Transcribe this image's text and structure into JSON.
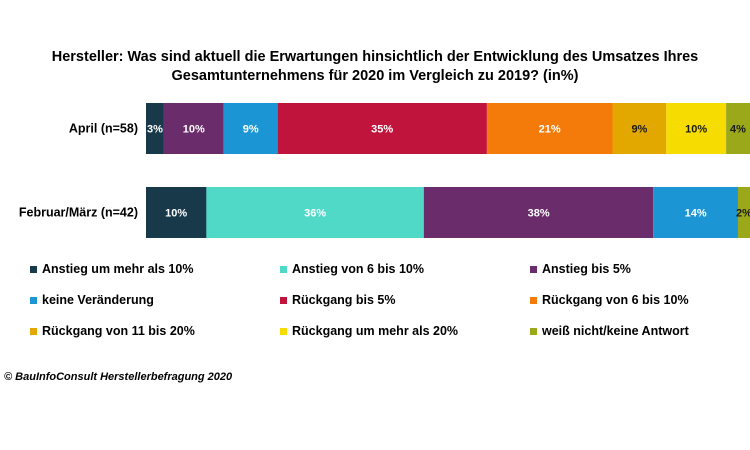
{
  "chart_data": {
    "type": "bar",
    "orientation": "horizontal-stacked-100",
    "title_lines": [
      "Hersteller: Was sind aktuell die Erwartungen hinsichtlich der Entwicklung des Umsatzes Ihres",
      "Gesamtunternehmens für 2020 im Vergleich zu 2019? (in%)"
    ],
    "categories": [
      "April (n=58)",
      "Februar/März (n=42)"
    ],
    "series": [
      {
        "name": "Anstieg um mehr als 10%",
        "color": "#17394a",
        "values": [
          3,
          10
        ],
        "labels": [
          "3%",
          "10%"
        ]
      },
      {
        "name": "Anstieg von 6 bis 10%",
        "color": "#4fd9c6",
        "values": [
          0,
          36
        ],
        "labels": [
          "",
          "36%"
        ]
      },
      {
        "name": "Anstieg bis 5%",
        "color": "#6a2c6a",
        "values": [
          10,
          38
        ],
        "labels": [
          "10%",
          "38%"
        ]
      },
      {
        "name": "keine Veränderung",
        "color": "#1b95d3",
        "values": [
          9,
          14
        ],
        "labels": [
          "9%",
          "14%"
        ]
      },
      {
        "name": "Rückgang bis 5%",
        "color": "#c0143c",
        "values": [
          35,
          0
        ],
        "labels": [
          "35%",
          ""
        ]
      },
      {
        "name": "Rückgang von 6 bis 10%",
        "color": "#f47b0a",
        "values": [
          21,
          0
        ],
        "labels": [
          "21%",
          ""
        ]
      },
      {
        "name": "Rückgang von 11 bis 20%",
        "color": "#e3a800",
        "values": [
          9,
          0
        ],
        "labels": [
          "9%",
          ""
        ]
      },
      {
        "name": "Rückgang um mehr als 20%",
        "color": "#f7dc00",
        "values": [
          10,
          0
        ],
        "labels": [
          "10%",
          ""
        ]
      },
      {
        "name": "weiß nicht/keine Antwort",
        "color": "#9aa81a",
        "values": [
          4,
          2
        ],
        "labels": [
          "4%",
          "2%"
        ]
      }
    ],
    "legend_position": "bottom",
    "grid": false
  },
  "source": "© BauInfoConsult Herstellerbefragung 2020"
}
